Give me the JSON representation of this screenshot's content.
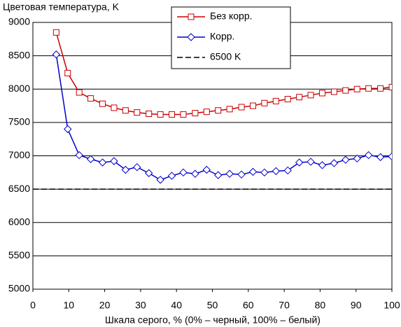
{
  "chart_data": {
    "type": "line",
    "ylabel": "Цветовая температура, K",
    "xlabel": "Шкала серого, % (0% – черный, 100% – белый)",
    "xlim": [
      0,
      100
    ],
    "xticks": [
      0,
      10,
      20,
      30,
      40,
      50,
      60,
      70,
      80,
      90,
      100
    ],
    "ylim": [
      5000,
      9000
    ],
    "yticks": [
      5000,
      5500,
      6000,
      6500,
      7000,
      7500,
      8000,
      8500,
      9000
    ],
    "grid": true,
    "legend": "top",
    "series": [
      {
        "name": "Без корр.",
        "color": "#cc0000",
        "marker": "square",
        "x": [
          6.5,
          9.7,
          12.9,
          16.1,
          19.4,
          22.6,
          25.8,
          29,
          32.3,
          35.5,
          38.7,
          41.9,
          45.2,
          48.4,
          51.6,
          54.8,
          58.1,
          61.3,
          64.5,
          67.7,
          71,
          74.2,
          77.4,
          80.6,
          83.9,
          87.1,
          90.3,
          93.5,
          96.8,
          100
        ],
        "values": [
          8850,
          8240,
          7950,
          7860,
          7780,
          7720,
          7680,
          7650,
          7630,
          7620,
          7620,
          7620,
          7640,
          7660,
          7680,
          7700,
          7730,
          7750,
          7790,
          7820,
          7850,
          7880,
          7910,
          7940,
          7960,
          7980,
          8000,
          8010,
          8010,
          8030
        ]
      },
      {
        "name": "Корр.",
        "color": "#0000cc",
        "marker": "diamond",
        "x": [
          6.5,
          9.7,
          12.9,
          16.1,
          19.4,
          22.6,
          25.8,
          29,
          32.3,
          35.5,
          38.7,
          41.9,
          45.2,
          48.4,
          51.6,
          54.8,
          58.1,
          61.3,
          64.5,
          67.7,
          71,
          74.2,
          77.4,
          80.6,
          83.9,
          87.1,
          90.3,
          93.5,
          96.8,
          100
        ],
        "values": [
          8520,
          7400,
          7010,
          6950,
          6900,
          6920,
          6790,
          6830,
          6740,
          6640,
          6700,
          6750,
          6730,
          6790,
          6710,
          6730,
          6720,
          6760,
          6750,
          6770,
          6780,
          6900,
          6910,
          6860,
          6890,
          6940,
          6960,
          7010,
          6980,
          6990
        ]
      },
      {
        "name": "6500 K",
        "color": "#000000",
        "marker": "none",
        "dash": true,
        "x": [
          0,
          100
        ],
        "values": [
          6500,
          6500
        ]
      }
    ]
  }
}
